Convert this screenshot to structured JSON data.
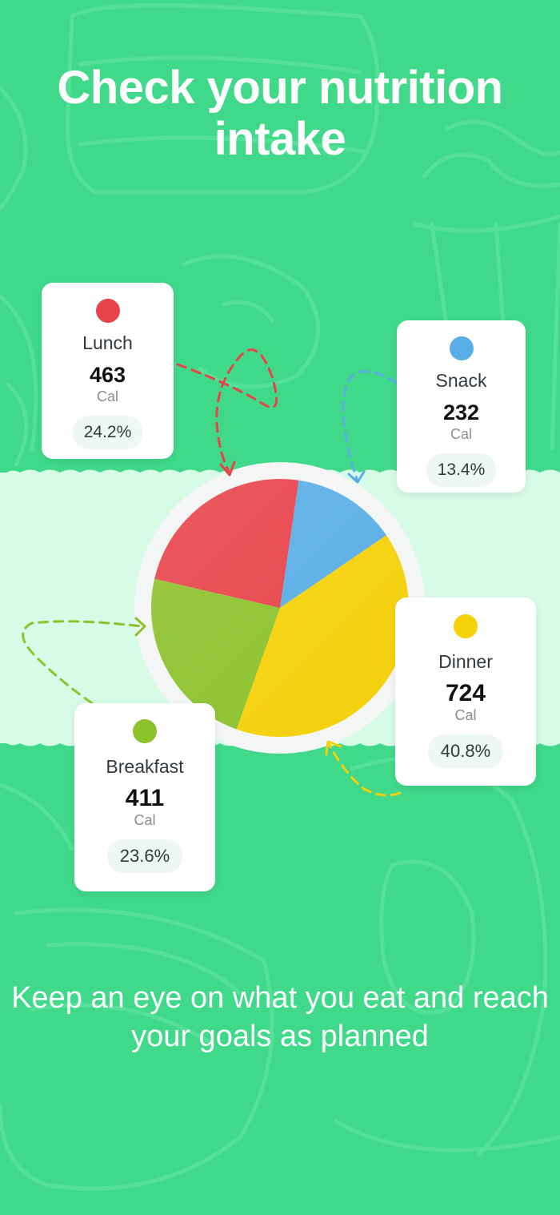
{
  "headline": "Check your nutrition intake",
  "subtitle": "Keep an eye on what you eat and reach your goals as planned",
  "colors": {
    "background": "#40d98a",
    "band": "#d6fbe7",
    "lunch": "#e8434a",
    "snack": "#5aaee6",
    "dinner": "#f5d10a",
    "breakfast": "#8cc22c"
  },
  "cards": {
    "lunch": {
      "name": "Lunch",
      "value": "463",
      "unit": "Cal",
      "percent": "24.2%"
    },
    "snack": {
      "name": "Snack",
      "value": "232",
      "unit": "Cal",
      "percent": "13.4%"
    },
    "dinner": {
      "name": "Dinner",
      "value": "724",
      "unit": "Cal",
      "percent": "40.8%"
    },
    "breakfast": {
      "name": "Breakfast",
      "value": "411",
      "unit": "Cal",
      "percent": "23.6%"
    }
  },
  "chart_data": {
    "type": "pie",
    "categories": [
      "Lunch",
      "Snack",
      "Dinner",
      "Breakfast"
    ],
    "values": [
      24.2,
      13.4,
      40.8,
      23.6
    ],
    "colors": [
      "#e8434a",
      "#5aaee6",
      "#f5d10a",
      "#8cc22c"
    ]
  }
}
